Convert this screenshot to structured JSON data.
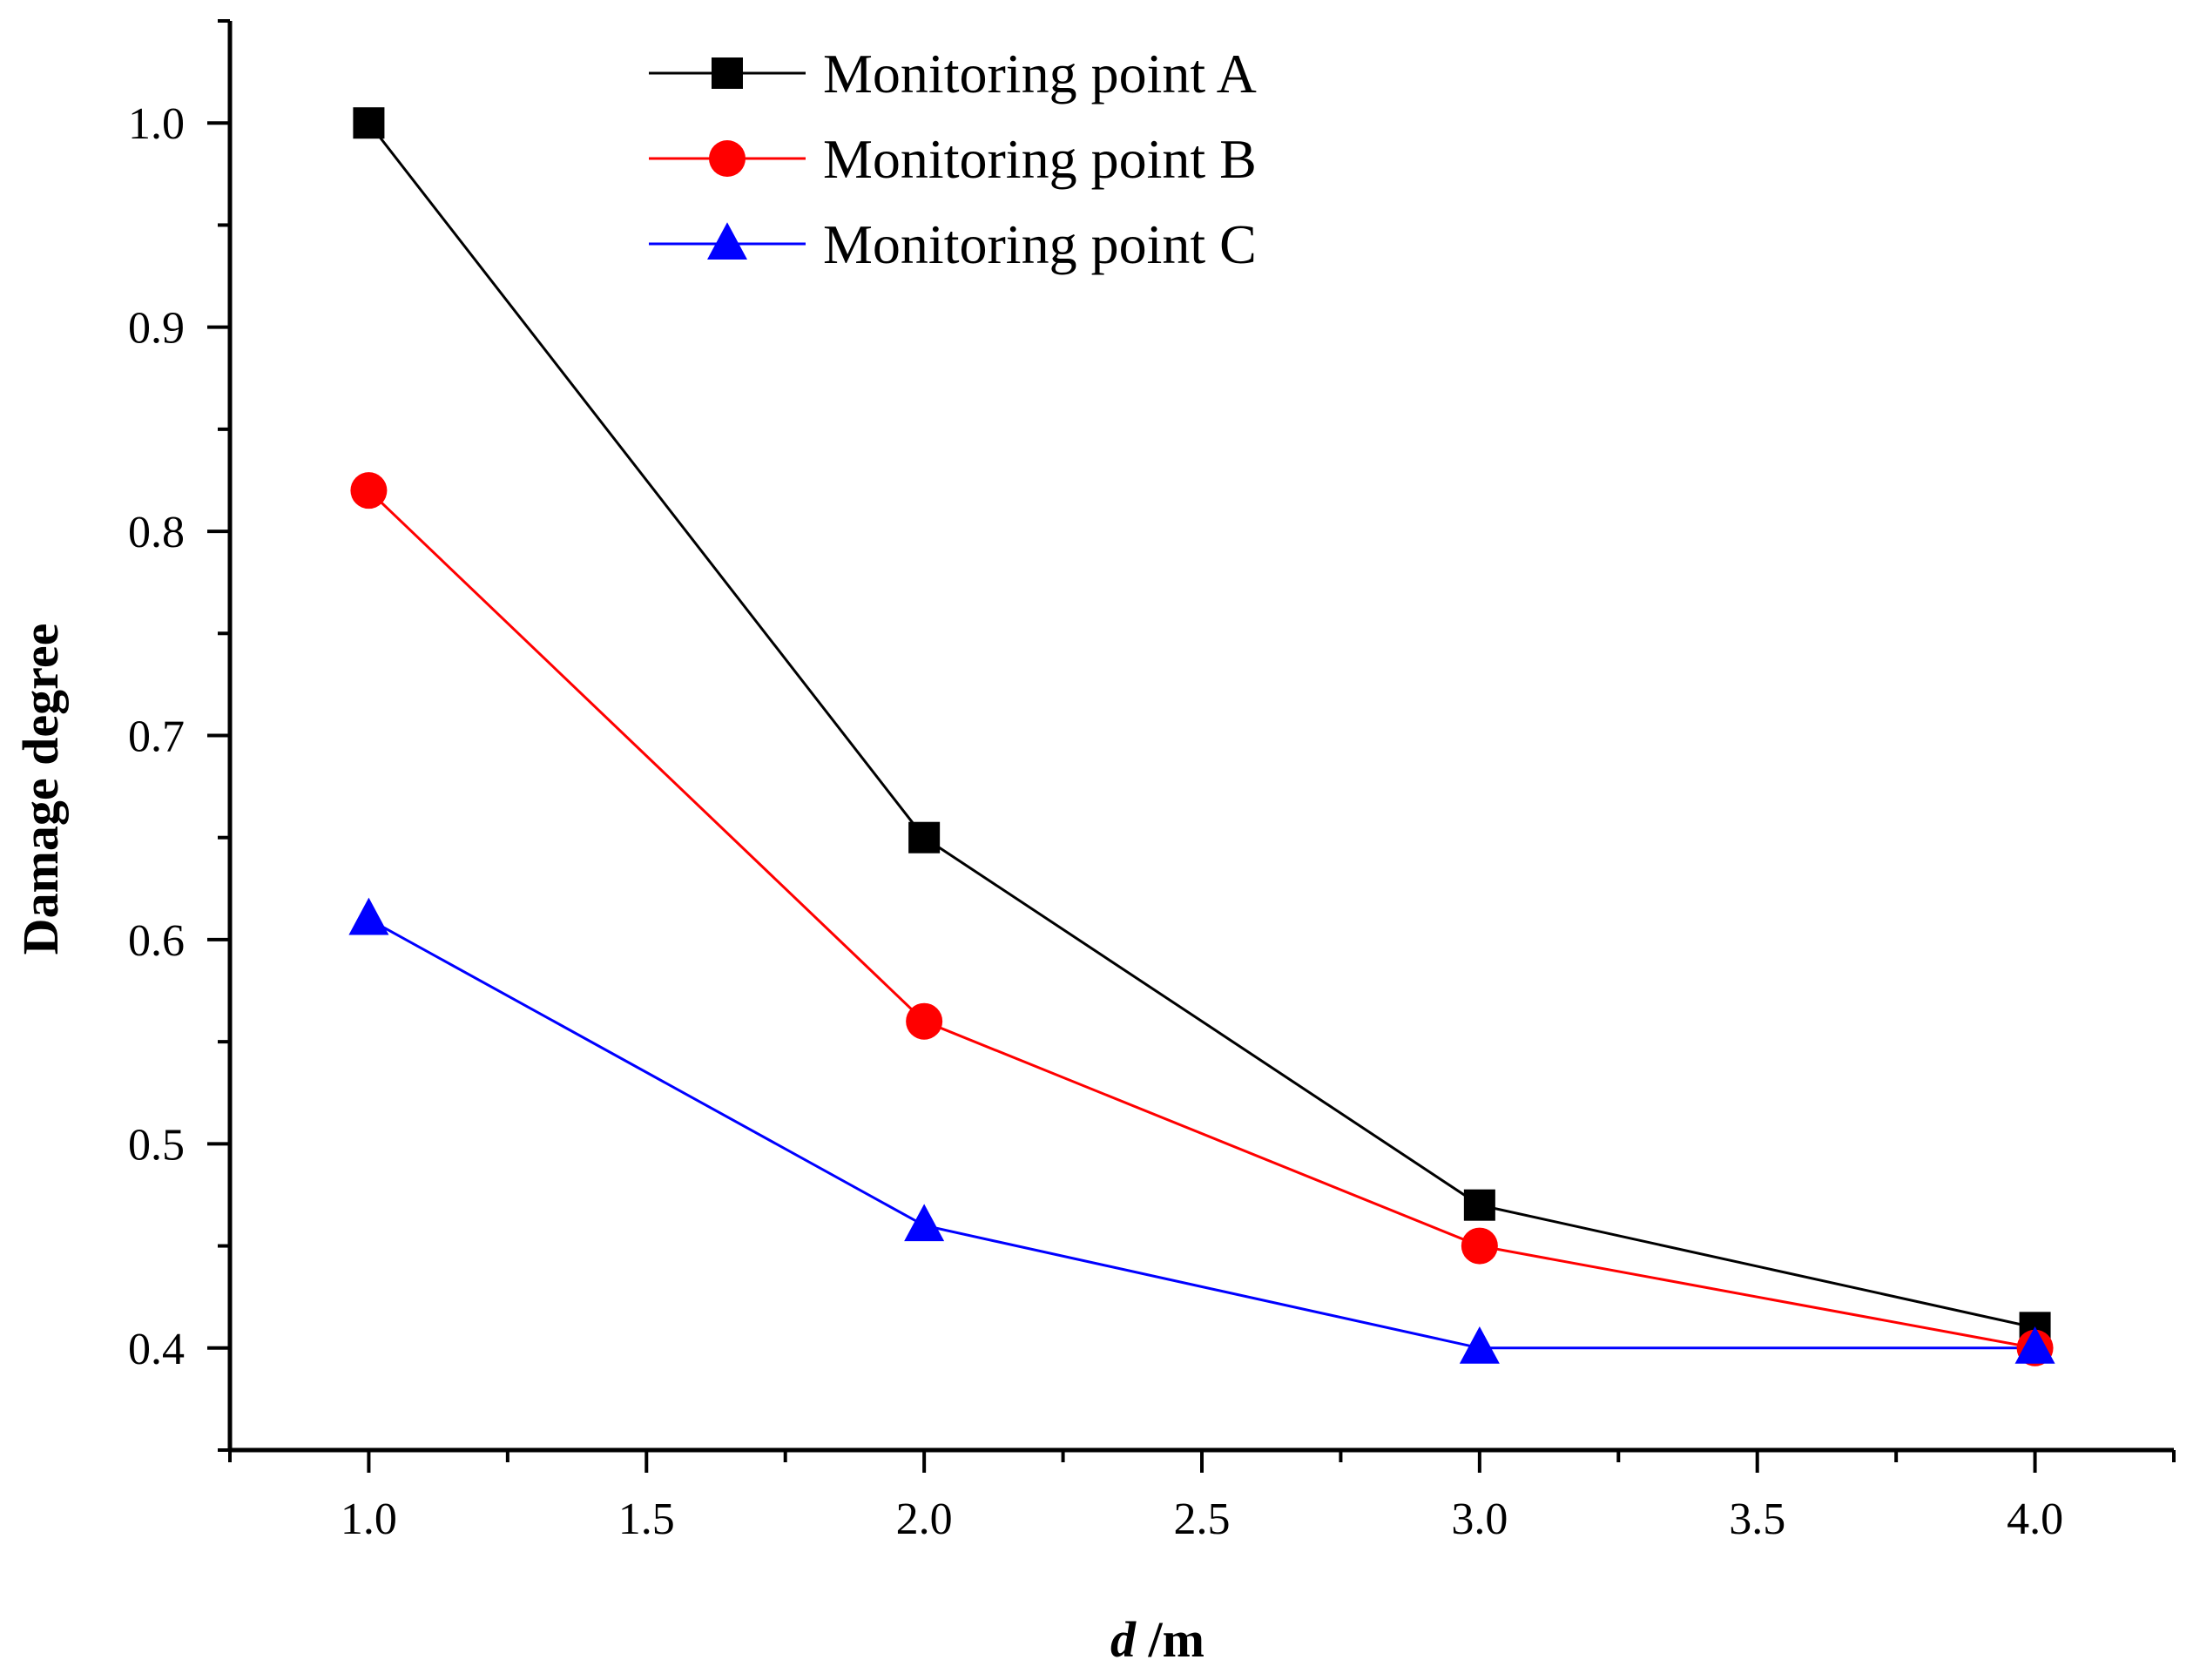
{
  "chart_data": {
    "type": "line",
    "title": "",
    "xlabel": {
      "var": "d",
      "unit": " /m"
    },
    "ylabel": "Damage degree",
    "xlim": [
      0.75,
      4.25
    ],
    "ylim": [
      0.35,
      1.05
    ],
    "xticks": [
      1.0,
      1.5,
      2.0,
      2.5,
      3.0,
      3.5,
      4.0
    ],
    "xtick_labels": [
      "1.0",
      "1.5",
      "2.0",
      "2.5",
      "3.0",
      "3.5",
      "4.0"
    ],
    "yticks": [
      0.4,
      0.5,
      0.6,
      0.7,
      0.8,
      0.9,
      1.0
    ],
    "ytick_labels": [
      "0.4",
      "0.5",
      "0.6",
      "0.7",
      "0.8",
      "0.9",
      "1.0"
    ],
    "grid": false,
    "legend_position": "top-left",
    "x": [
      1.0,
      2.0,
      3.0,
      4.0
    ],
    "series": [
      {
        "name": "Monitoring point A",
        "marker": "square",
        "color": "#000000",
        "values": [
          1.0,
          0.65,
          0.47,
          0.41
        ]
      },
      {
        "name": "Monitoring point B",
        "marker": "circle",
        "color": "#ff0000",
        "values": [
          0.82,
          0.56,
          0.45,
          0.4
        ]
      },
      {
        "name": "Monitoring point C",
        "marker": "triangle",
        "color": "#0000ff",
        "values": [
          0.61,
          0.46,
          0.4,
          0.4
        ]
      }
    ]
  }
}
